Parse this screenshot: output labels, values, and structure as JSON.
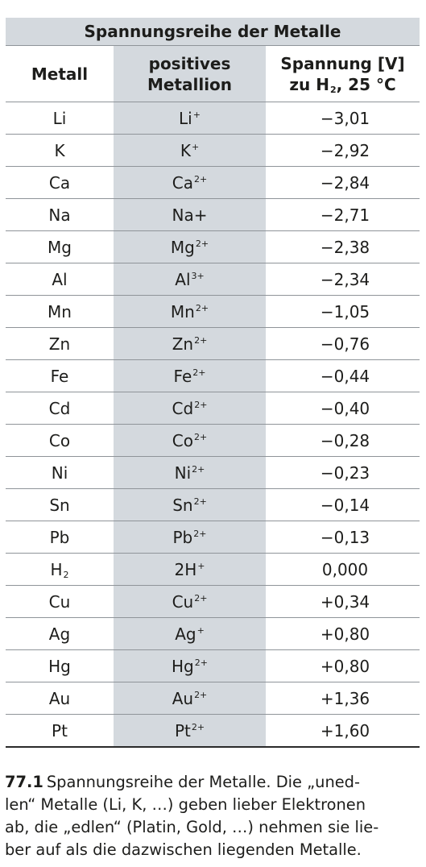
{
  "table": {
    "title": "Spannungsreihe der Metalle",
    "headers": {
      "metal": "Metall",
      "ion_line1": "positives",
      "ion_line2": "Metallion",
      "voltage_line1": "Spannung [V]",
      "voltage_line2_prefix": "zu H",
      "voltage_line2_sub": "2",
      "voltage_line2_suffix": ", 25 °C"
    },
    "rows": [
      {
        "metal": "Li",
        "metal_sub": "",
        "ion": "Li",
        "charge": "+",
        "voltage": "−3,01"
      },
      {
        "metal": "K",
        "metal_sub": "",
        "ion": "K",
        "charge": "+",
        "voltage": "−2,92"
      },
      {
        "metal": "Ca",
        "metal_sub": "",
        "ion": "Ca",
        "charge": "2+",
        "voltage": "−2,84"
      },
      {
        "metal": "Na",
        "metal_sub": "",
        "ion": "Na+",
        "charge": "",
        "voltage": "−2,71"
      },
      {
        "metal": "Mg",
        "metal_sub": "",
        "ion": "Mg",
        "charge": "2+",
        "voltage": "−2,38"
      },
      {
        "metal": "Al",
        "metal_sub": "",
        "ion": "Al",
        "charge": "3+",
        "voltage": "−2,34"
      },
      {
        "metal": "Mn",
        "metal_sub": "",
        "ion": "Mn",
        "charge": "2+",
        "voltage": "−1,05"
      },
      {
        "metal": "Zn",
        "metal_sub": "",
        "ion": "Zn",
        "charge": "2+",
        "voltage": "−0,76"
      },
      {
        "metal": "Fe",
        "metal_sub": "",
        "ion": "Fe",
        "charge": "2+",
        "voltage": "−0,44"
      },
      {
        "metal": "Cd",
        "metal_sub": "",
        "ion": "Cd",
        "charge": "2+",
        "voltage": "−0,40"
      },
      {
        "metal": "Co",
        "metal_sub": "",
        "ion": "Co",
        "charge": "2+",
        "voltage": "−0,28"
      },
      {
        "metal": "Ni",
        "metal_sub": "",
        "ion": "Ni",
        "charge": "2+",
        "voltage": "−0,23"
      },
      {
        "metal": "Sn",
        "metal_sub": "",
        "ion": "Sn",
        "charge": "2+",
        "voltage": "−0,14"
      },
      {
        "metal": "Pb",
        "metal_sub": "",
        "ion": "Pb",
        "charge": "2+",
        "voltage": "−0,13"
      },
      {
        "metal": "H",
        "metal_sub": "2",
        "ion": "2H",
        "charge": "+",
        "voltage": "0,000"
      },
      {
        "metal": "Cu",
        "metal_sub": "",
        "ion": "Cu",
        "charge": "2+",
        "voltage": "+0,34"
      },
      {
        "metal": "Ag",
        "metal_sub": "",
        "ion": "Ag",
        "charge": "+",
        "voltage": "+0,80"
      },
      {
        "metal": "Hg",
        "metal_sub": "",
        "ion": "Hg",
        "charge": "2+",
        "voltage": "+0,80"
      },
      {
        "metal": "Au",
        "metal_sub": "",
        "ion": "Au",
        "charge": "2+",
        "voltage": "+1,36"
      },
      {
        "metal": "Pt",
        "metal_sub": "",
        "ion": "Pt",
        "charge": "2+",
        "voltage": "+1,60"
      }
    ]
  },
  "caption": {
    "number": "77.1",
    "lines": [
      "Spannungsreihe der Metalle. Die „uned-",
      "len“ Metalle (Li, K, …) geben lieber Elektronen",
      "ab, die „edlen“ (Platin, Gold, …) nehmen sie lie-",
      "ber auf als die dazwischen liegenden Metalle."
    ]
  },
  "colors": {
    "header_shade": "#d4d9de",
    "rule": "#8f9499",
    "text": "#1d1d1b"
  }
}
